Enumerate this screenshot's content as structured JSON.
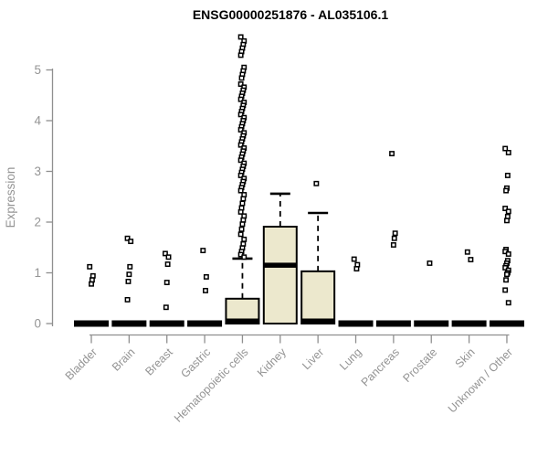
{
  "chart_data": {
    "type": "boxplot",
    "title": "ENSG00000251876 - AL035106.1",
    "ylabel": "Expression",
    "yticks": [
      0,
      1,
      2,
      3,
      4,
      5
    ],
    "ylim": [
      0,
      5.75
    ],
    "grid": false,
    "legend": "none",
    "categories": [
      "Bladder",
      "Brain",
      "Breast",
      "Gastric",
      "Hematopoietic cells",
      "Kidney",
      "Liver",
      "Lung",
      "Pancreas",
      "Prostate",
      "Skin",
      "Unknown / Other"
    ],
    "boxes": [
      {
        "category": "Bladder",
        "q1": 0,
        "median": 0,
        "q3": 0,
        "whisker_low": 0,
        "whisker_high": 0,
        "outliers": [
          1.12,
          0.94,
          0.86,
          0.78
        ]
      },
      {
        "category": "Brain",
        "q1": 0,
        "median": 0,
        "q3": 0,
        "whisker_low": 0,
        "whisker_high": 0,
        "outliers": [
          1.68,
          1.62,
          1.12,
          0.97,
          0.83,
          0.47
        ]
      },
      {
        "category": "Breast",
        "q1": 0,
        "median": 0,
        "q3": 0,
        "whisker_low": 0,
        "whisker_high": 0,
        "outliers": [
          1.38,
          1.31,
          1.17,
          0.81,
          0.32
        ]
      },
      {
        "category": "Gastric",
        "q1": 0,
        "median": 0,
        "q3": 0,
        "whisker_low": 0,
        "whisker_high": 0,
        "outliers": [
          1.44,
          0.92,
          0.65
        ]
      },
      {
        "category": "Hematopoietic cells",
        "q1": 0,
        "median": 0.02,
        "q3": 0.49,
        "whisker_low": 0,
        "whisker_high": 1.28,
        "outliers": [
          5.65,
          5.57,
          5.5,
          5.43,
          5.36,
          5.29,
          5.05,
          4.98,
          4.91,
          4.84,
          4.72,
          4.66,
          4.6,
          4.54,
          4.48,
          4.42,
          4.36,
          4.3,
          4.24,
          4.18,
          4.12,
          4.06,
          4.0,
          3.94,
          3.88,
          3.82,
          3.76,
          3.7,
          3.64,
          3.58,
          3.52,
          3.46,
          3.4,
          3.34,
          3.28,
          3.22,
          3.16,
          3.1,
          3.04,
          2.98,
          2.92,
          2.86,
          2.8,
          2.74,
          2.68,
          2.62,
          2.54,
          2.46,
          2.37,
          2.28,
          2.2,
          2.12,
          2.04,
          1.96,
          1.86,
          1.76,
          1.66,
          1.57,
          1.49,
          1.42,
          1.36,
          1.31
        ]
      },
      {
        "category": "Kidney",
        "q1": 0,
        "median": 1.15,
        "q3": 1.91,
        "whisker_low": 0,
        "whisker_high": 2.56,
        "outliers": []
      },
      {
        "category": "Liver",
        "q1": 0,
        "median": 0.02,
        "q3": 1.03,
        "whisker_low": 0,
        "whisker_high": 2.18,
        "outliers": [
          2.76
        ]
      },
      {
        "category": "Lung",
        "q1": 0,
        "median": 0,
        "q3": 0,
        "whisker_low": 0,
        "whisker_high": 0,
        "outliers": [
          1.27,
          1.16,
          1.08
        ]
      },
      {
        "category": "Pancreas",
        "q1": 0,
        "median": 0,
        "q3": 0,
        "whisker_low": 0,
        "whisker_high": 0,
        "outliers": [
          3.35,
          1.78,
          1.68,
          1.55
        ]
      },
      {
        "category": "Prostate",
        "q1": 0,
        "median": 0,
        "q3": 0,
        "whisker_low": 0,
        "whisker_high": 0,
        "outliers": [
          1.19
        ]
      },
      {
        "category": "Skin",
        "q1": 0,
        "median": 0,
        "q3": 0,
        "whisker_low": 0,
        "whisker_high": 0,
        "outliers": [
          1.41,
          1.26
        ]
      },
      {
        "category": "Unknown / Other",
        "q1": 0,
        "median": 0,
        "q3": 0,
        "whisker_low": 0,
        "whisker_high": 0,
        "outliers": [
          3.45,
          3.37,
          2.92,
          2.67,
          2.62,
          2.27,
          2.21,
          2.11,
          2.03,
          1.46,
          1.42,
          1.37,
          1.24,
          1.19,
          1.14,
          1.1,
          1.05,
          1.0,
          0.97,
          0.86,
          0.66,
          0.41
        ]
      }
    ],
    "colors": {
      "box_fill": "#ece8cd",
      "box_stroke": "#000000",
      "median": "#000000",
      "whisker": "#000000",
      "outlier_stroke": "#000000",
      "outlier_fill": "#ffffff",
      "axis": "#8f8f8f",
      "tick_text": "#949494",
      "title_text": "#000000",
      "background": "#ffffff"
    }
  }
}
